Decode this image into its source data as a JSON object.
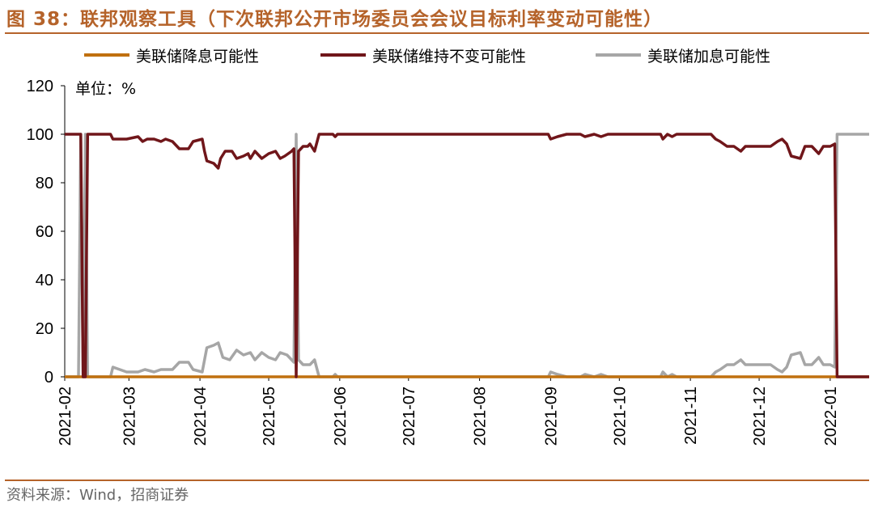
{
  "figure": {
    "title": "图 38：联邦观察工具（下次联邦公开市场委员会会议目标利率变动可能性）",
    "source": "资料来源：Wind，招商证券"
  },
  "chart_data": {
    "type": "line",
    "unit_label": "单位：%",
    "ylim": [
      0,
      120
    ],
    "y_ticks": [
      "0",
      "20",
      "40",
      "60",
      "80",
      "100",
      "120"
    ],
    "xlim": [
      "2021-02-01",
      "2022-01-18"
    ],
    "x_ticks": [
      "2021-02",
      "2021-03",
      "2021-04",
      "2021-05",
      "2021-06",
      "2021-07",
      "2021-08",
      "2021-09",
      "2021-10",
      "2021-11",
      "2021-12",
      "2022-01"
    ],
    "grid": false,
    "legend": "top",
    "series": [
      {
        "name": "美联储降息可能性",
        "color": "#c0700f",
        "points": [
          [
            "2021-02-01",
            0
          ],
          [
            "2021-05-24",
            0
          ],
          [
            "2021-11-14",
            0
          ],
          [
            "2022-01-18",
            0
          ]
        ]
      },
      {
        "name": "美联储维持不变可能性",
        "color": "#70161a",
        "points": [
          [
            "2021-02-01",
            100
          ],
          [
            "2021-02-08",
            100
          ],
          [
            "2021-02-09",
            0
          ],
          [
            "2021-02-10",
            0
          ],
          [
            "2021-02-11",
            100
          ],
          [
            "2021-02-12",
            100
          ],
          [
            "2021-02-17",
            100
          ],
          [
            "2021-02-21",
            100
          ],
          [
            "2021-02-22",
            98
          ],
          [
            "2021-02-28",
            98
          ],
          [
            "2021-03-05",
            99
          ],
          [
            "2021-03-07",
            97
          ],
          [
            "2021-03-09",
            98
          ],
          [
            "2021-03-12",
            98
          ],
          [
            "2021-03-15",
            97
          ],
          [
            "2021-03-17",
            98
          ],
          [
            "2021-03-20",
            97
          ],
          [
            "2021-03-23",
            94
          ],
          [
            "2021-03-27",
            94
          ],
          [
            "2021-03-29",
            97
          ],
          [
            "2021-04-02",
            98
          ],
          [
            "2021-04-03",
            93
          ],
          [
            "2021-04-04",
            89
          ],
          [
            "2021-04-07",
            88
          ],
          [
            "2021-04-09",
            86
          ],
          [
            "2021-04-10",
            90
          ],
          [
            "2021-04-12",
            93
          ],
          [
            "2021-04-15",
            93
          ],
          [
            "2021-04-17",
            90
          ],
          [
            "2021-04-20",
            91
          ],
          [
            "2021-04-22",
            92
          ],
          [
            "2021-04-23",
            90
          ],
          [
            "2021-04-25",
            93
          ],
          [
            "2021-04-28",
            90
          ],
          [
            "2021-05-01",
            92
          ],
          [
            "2021-05-04",
            93
          ],
          [
            "2021-05-06",
            90
          ],
          [
            "2021-05-08",
            91
          ],
          [
            "2021-05-11",
            93
          ],
          [
            "2021-05-12",
            94
          ],
          [
            "2021-05-13",
            0
          ],
          [
            "2021-05-14",
            93
          ],
          [
            "2021-05-16",
            95
          ],
          [
            "2021-05-18",
            95
          ],
          [
            "2021-05-19",
            96
          ],
          [
            "2021-05-21",
            93
          ],
          [
            "2021-05-23",
            100
          ],
          [
            "2021-05-29",
            100
          ],
          [
            "2021-05-30",
            99
          ],
          [
            "2021-05-31",
            100
          ],
          [
            "2021-08-31",
            100
          ],
          [
            "2021-09-01",
            98
          ],
          [
            "2021-09-04",
            99
          ],
          [
            "2021-09-08",
            100
          ],
          [
            "2021-09-14",
            100
          ],
          [
            "2021-09-16",
            99
          ],
          [
            "2021-09-20",
            100
          ],
          [
            "2021-09-23",
            99
          ],
          [
            "2021-09-26",
            100
          ],
          [
            "2021-10-19",
            100
          ],
          [
            "2021-10-20",
            98
          ],
          [
            "2021-10-22",
            100
          ],
          [
            "2021-10-24",
            99
          ],
          [
            "2021-10-26",
            100
          ],
          [
            "2021-11-10",
            100
          ],
          [
            "2021-11-12",
            98
          ],
          [
            "2021-11-14",
            97
          ],
          [
            "2021-11-17",
            95
          ],
          [
            "2021-11-20",
            95
          ],
          [
            "2021-11-23",
            93
          ],
          [
            "2021-11-25",
            95
          ],
          [
            "2021-11-29",
            95
          ],
          [
            "2021-12-03",
            95
          ],
          [
            "2021-12-06",
            95
          ],
          [
            "2021-12-09",
            97
          ],
          [
            "2021-12-11",
            98
          ],
          [
            "2021-12-13",
            96
          ],
          [
            "2021-12-15",
            91
          ],
          [
            "2021-12-19",
            90
          ],
          [
            "2021-12-21",
            95
          ],
          [
            "2021-12-24",
            95
          ],
          [
            "2021-12-27",
            92
          ],
          [
            "2021-12-29",
            95
          ],
          [
            "2022-01-01",
            95
          ],
          [
            "2022-01-03",
            96
          ],
          [
            "2022-01-04",
            0
          ],
          [
            "2022-01-18",
            0
          ]
        ]
      },
      {
        "name": "美联储加息可能性",
        "color": "#a6a6a6",
        "points": [
          [
            "2021-02-01",
            0
          ],
          [
            "2021-02-07",
            0
          ],
          [
            "2021-02-08",
            100
          ],
          [
            "2021-02-09",
            0
          ],
          [
            "2021-02-10",
            100
          ],
          [
            "2021-02-11",
            0
          ],
          [
            "2021-02-21",
            0
          ],
          [
            "2021-02-22",
            4
          ],
          [
            "2021-02-28",
            2
          ],
          [
            "2021-03-05",
            2
          ],
          [
            "2021-03-08",
            3
          ],
          [
            "2021-03-12",
            2
          ],
          [
            "2021-03-15",
            3
          ],
          [
            "2021-03-17",
            3
          ],
          [
            "2021-03-20",
            3
          ],
          [
            "2021-03-23",
            6
          ],
          [
            "2021-03-27",
            6
          ],
          [
            "2021-03-29",
            3
          ],
          [
            "2021-04-02",
            2
          ],
          [
            "2021-04-04",
            12
          ],
          [
            "2021-04-07",
            13
          ],
          [
            "2021-04-09",
            14
          ],
          [
            "2021-04-11",
            8
          ],
          [
            "2021-04-14",
            7
          ],
          [
            "2021-04-17",
            11
          ],
          [
            "2021-04-20",
            9
          ],
          [
            "2021-04-23",
            10
          ],
          [
            "2021-04-25",
            7
          ],
          [
            "2021-04-28",
            10
          ],
          [
            "2021-05-01",
            8
          ],
          [
            "2021-05-04",
            7
          ],
          [
            "2021-05-06",
            10
          ],
          [
            "2021-05-09",
            9
          ],
          [
            "2021-05-12",
            6
          ],
          [
            "2021-05-13",
            100
          ],
          [
            "2021-05-14",
            7
          ],
          [
            "2021-05-16",
            5
          ],
          [
            "2021-05-18",
            5
          ],
          [
            "2021-05-19",
            5
          ],
          [
            "2021-05-21",
            7
          ],
          [
            "2021-05-23",
            0
          ],
          [
            "2021-05-29",
            0
          ],
          [
            "2021-05-30",
            1
          ],
          [
            "2021-05-31",
            0
          ],
          [
            "2021-08-31",
            0
          ],
          [
            "2021-09-01",
            2
          ],
          [
            "2021-09-04",
            1
          ],
          [
            "2021-09-08",
            0
          ],
          [
            "2021-09-14",
            0
          ],
          [
            "2021-09-16",
            1
          ],
          [
            "2021-09-20",
            0
          ],
          [
            "2021-09-23",
            1
          ],
          [
            "2021-09-26",
            0
          ],
          [
            "2021-10-19",
            0
          ],
          [
            "2021-10-20",
            2
          ],
          [
            "2021-10-22",
            0
          ],
          [
            "2021-10-24",
            1
          ],
          [
            "2021-10-26",
            0
          ],
          [
            "2021-11-10",
            0
          ],
          [
            "2021-11-12",
            2
          ],
          [
            "2021-11-14",
            3
          ],
          [
            "2021-11-17",
            5
          ],
          [
            "2021-11-20",
            5
          ],
          [
            "2021-11-23",
            7
          ],
          [
            "2021-11-25",
            5
          ],
          [
            "2021-11-29",
            5
          ],
          [
            "2021-12-03",
            5
          ],
          [
            "2021-12-06",
            5
          ],
          [
            "2021-12-09",
            3
          ],
          [
            "2021-12-11",
            2
          ],
          [
            "2021-12-13",
            4
          ],
          [
            "2021-12-15",
            9
          ],
          [
            "2021-12-19",
            10
          ],
          [
            "2021-12-21",
            5
          ],
          [
            "2021-12-24",
            5
          ],
          [
            "2021-12-27",
            8
          ],
          [
            "2021-12-29",
            5
          ],
          [
            "2022-01-01",
            5
          ],
          [
            "2022-01-03",
            4
          ],
          [
            "2022-01-04",
            100
          ],
          [
            "2022-01-18",
            100
          ]
        ]
      }
    ]
  }
}
